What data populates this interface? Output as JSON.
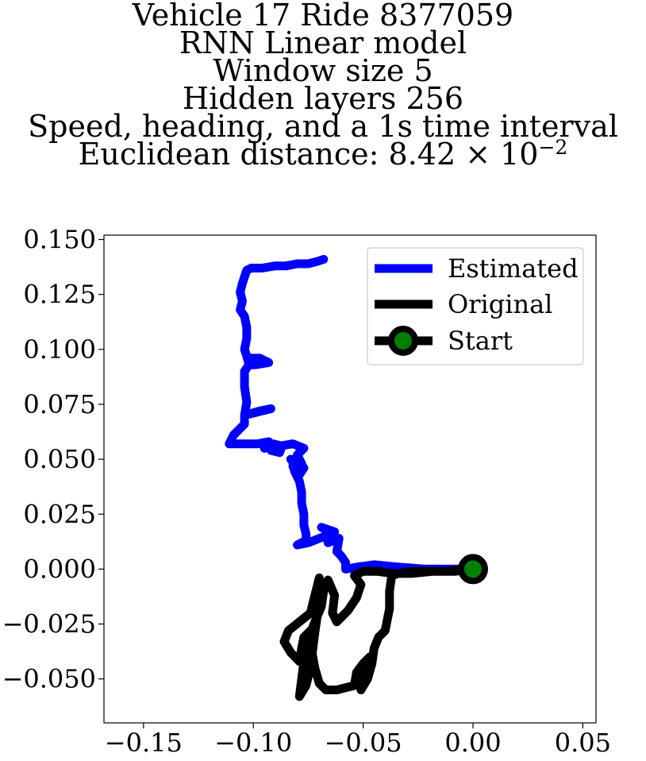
{
  "chart_data": {
    "type": "line",
    "title_lines": [
      "Vehicle 17 Ride 8377059",
      "RNN Linear model",
      "Window size 5",
      "Hidden layers 256",
      "Speed, heading, and a 1s time interval"
    ],
    "distance_label": "Euclidean distance: ",
    "distance_mantissa": "8.42",
    "distance_times": " × 10",
    "distance_exponent": "−2",
    "xlim": [
      -0.168,
      0.056
    ],
    "ylim": [
      -0.07,
      0.152
    ],
    "xticks": [
      -0.15,
      -0.1,
      -0.05,
      0.0,
      0.05
    ],
    "xtick_labels": [
      "−0.15",
      "−0.10",
      "−0.05",
      "0.00",
      "0.05"
    ],
    "yticks": [
      0.15,
      0.125,
      0.1,
      0.075,
      0.05,
      0.025,
      0.0,
      -0.025,
      -0.05
    ],
    "ytick_labels": [
      "0.150",
      "0.125",
      "0.100",
      "0.075",
      "0.050",
      "0.025",
      "0.000",
      "−0.025",
      "−0.050"
    ],
    "grid": false,
    "legend_position": "top-right",
    "series": [
      {
        "name": "Estimated",
        "color": "#0000ff",
        "points": [
          [
            0.0,
            0.0
          ],
          [
            -0.01,
            0.0
          ],
          [
            -0.022,
            0.0
          ],
          [
            -0.035,
            0.001
          ],
          [
            -0.045,
            0.002
          ],
          [
            -0.052,
            0.001
          ],
          [
            -0.058,
            0.0
          ],
          [
            -0.058,
            0.003
          ],
          [
            -0.06,
            0.006
          ],
          [
            -0.062,
            0.008
          ],
          [
            -0.061,
            0.014
          ],
          [
            -0.066,
            0.012
          ],
          [
            -0.063,
            0.017
          ],
          [
            -0.069,
            0.019
          ],
          [
            -0.064,
            0.016
          ],
          [
            -0.07,
            0.014
          ],
          [
            -0.075,
            0.012
          ],
          [
            -0.08,
            0.011
          ],
          [
            -0.076,
            0.013
          ],
          [
            -0.076,
            0.016
          ],
          [
            -0.077,
            0.02
          ],
          [
            -0.077,
            0.025
          ],
          [
            -0.078,
            0.03
          ],
          [
            -0.078,
            0.035
          ],
          [
            -0.079,
            0.04
          ],
          [
            -0.081,
            0.044
          ],
          [
            -0.082,
            0.047
          ],
          [
            -0.079,
            0.045
          ],
          [
            -0.083,
            0.05
          ],
          [
            -0.079,
            0.049
          ],
          [
            -0.077,
            0.046
          ],
          [
            -0.079,
            0.043
          ],
          [
            -0.078,
            0.048
          ],
          [
            -0.08,
            0.052
          ],
          [
            -0.077,
            0.055
          ],
          [
            -0.082,
            0.057
          ],
          [
            -0.088,
            0.056
          ],
          [
            -0.092,
            0.054
          ],
          [
            -0.088,
            0.053
          ],
          [
            -0.087,
            0.056
          ],
          [
            -0.091,
            0.057
          ],
          [
            -0.095,
            0.055
          ],
          [
            -0.093,
            0.058
          ],
          [
            -0.098,
            0.057
          ],
          [
            -0.103,
            0.057
          ],
          [
            -0.107,
            0.057
          ],
          [
            -0.111,
            0.057
          ],
          [
            -0.109,
            0.061
          ],
          [
            -0.106,
            0.064
          ],
          [
            -0.104,
            0.066
          ],
          [
            -0.104,
            0.07
          ],
          [
            -0.1,
            0.071
          ],
          [
            -0.096,
            0.072
          ],
          [
            -0.092,
            0.073
          ],
          [
            -0.097,
            0.072
          ],
          [
            -0.104,
            0.07
          ],
          [
            -0.103,
            0.076
          ],
          [
            -0.104,
            0.083
          ],
          [
            -0.104,
            0.09
          ],
          [
            -0.102,
            0.093
          ],
          [
            -0.098,
            0.094
          ],
          [
            -0.101,
            0.096
          ],
          [
            -0.097,
            0.096
          ],
          [
            -0.093,
            0.094
          ],
          [
            -0.099,
            0.093
          ],
          [
            -0.102,
            0.093
          ],
          [
            -0.103,
            0.097
          ],
          [
            -0.104,
            0.1
          ],
          [
            -0.103,
            0.105
          ],
          [
            -0.103,
            0.11
          ],
          [
            -0.104,
            0.115
          ],
          [
            -0.106,
            0.118
          ],
          [
            -0.105,
            0.122
          ],
          [
            -0.106,
            0.126
          ],
          [
            -0.105,
            0.13
          ],
          [
            -0.104,
            0.133
          ],
          [
            -0.103,
            0.136
          ],
          [
            -0.101,
            0.137
          ],
          [
            -0.096,
            0.137
          ],
          [
            -0.09,
            0.138
          ],
          [
            -0.085,
            0.138
          ],
          [
            -0.08,
            0.139
          ],
          [
            -0.075,
            0.139
          ],
          [
            -0.071,
            0.14
          ],
          [
            -0.068,
            0.141
          ]
        ]
      },
      {
        "name": "Original",
        "color": "#000000",
        "points": [
          [
            0.0,
            0.0
          ],
          [
            -0.008,
            -0.001
          ],
          [
            -0.018,
            -0.001
          ],
          [
            -0.028,
            -0.002
          ],
          [
            -0.036,
            -0.002
          ],
          [
            -0.044,
            -0.001
          ],
          [
            -0.05,
            -0.001
          ],
          [
            -0.054,
            -0.003
          ],
          [
            -0.051,
            -0.007
          ],
          [
            -0.053,
            -0.013
          ],
          [
            -0.057,
            -0.019
          ],
          [
            -0.062,
            -0.024
          ],
          [
            -0.064,
            -0.02
          ],
          [
            -0.063,
            -0.012
          ],
          [
            -0.066,
            -0.005
          ],
          [
            -0.068,
            -0.01
          ],
          [
            -0.069,
            -0.017
          ],
          [
            -0.072,
            -0.024
          ],
          [
            -0.075,
            -0.032
          ],
          [
            -0.077,
            -0.042
          ],
          [
            -0.078,
            -0.05
          ],
          [
            -0.079,
            -0.058
          ],
          [
            -0.076,
            -0.053
          ],
          [
            -0.074,
            -0.045
          ],
          [
            -0.073,
            -0.037
          ],
          [
            -0.072,
            -0.029
          ],
          [
            -0.071,
            -0.022
          ],
          [
            -0.07,
            -0.014
          ],
          [
            -0.07,
            -0.004
          ],
          [
            -0.072,
            -0.012
          ],
          [
            -0.074,
            -0.02
          ],
          [
            -0.079,
            -0.024
          ],
          [
            -0.084,
            -0.028
          ],
          [
            -0.086,
            -0.033
          ],
          [
            -0.083,
            -0.038
          ],
          [
            -0.079,
            -0.042
          ],
          [
            -0.078,
            -0.036
          ],
          [
            -0.077,
            -0.031
          ],
          [
            -0.073,
            -0.027
          ],
          [
            -0.074,
            -0.034
          ],
          [
            -0.072,
            -0.045
          ],
          [
            -0.07,
            -0.052
          ],
          [
            -0.067,
            -0.055
          ],
          [
            -0.062,
            -0.055
          ],
          [
            -0.058,
            -0.054
          ],
          [
            -0.054,
            -0.053
          ],
          [
            -0.053,
            -0.047
          ],
          [
            -0.05,
            -0.043
          ],
          [
            -0.047,
            -0.04
          ],
          [
            -0.049,
            -0.045
          ],
          [
            -0.052,
            -0.05
          ],
          [
            -0.051,
            -0.055
          ],
          [
            -0.048,
            -0.05
          ],
          [
            -0.046,
            -0.043
          ],
          [
            -0.045,
            -0.036
          ],
          [
            -0.043,
            -0.031
          ],
          [
            -0.04,
            -0.028
          ],
          [
            -0.038,
            -0.018
          ],
          [
            -0.038,
            -0.01
          ],
          [
            -0.037,
            -0.003
          ],
          [
            -0.034,
            -0.002
          ],
          [
            -0.028,
            -0.001
          ],
          [
            -0.02,
            -0.001
          ],
          [
            -0.012,
            -0.001
          ],
          [
            -0.005,
            0.0
          ],
          [
            0.0,
            0.0
          ]
        ]
      }
    ],
    "start_marker": {
      "name": "Start",
      "point": [
        0.0,
        0.0
      ],
      "fill_color": "#008000",
      "edge_color": "#000000"
    },
    "legend": {
      "estimated": "Estimated",
      "original": "Original",
      "start": "Start"
    }
  }
}
